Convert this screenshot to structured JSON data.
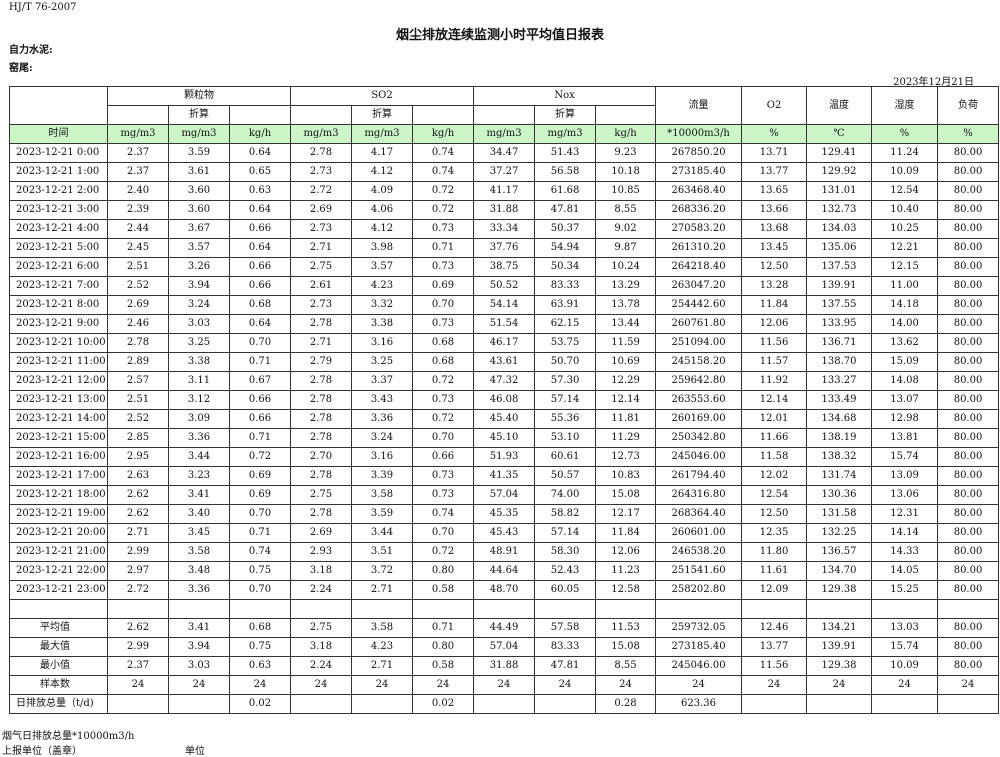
{
  "header": {
    "standard": "HJ/T  76-2007",
    "title": "烟尘排放连续监测小时平均值日报表",
    "company": "自力水泥:",
    "unit": "窑尾:",
    "date": "2023年12月21日"
  },
  "table": {
    "groups": [
      "颗粒物",
      "SO2",
      "Nox"
    ],
    "single_headers": [
      "流量",
      "O2",
      "温度",
      "湿度",
      "负荷"
    ],
    "converted_labels": [
      "折算",
      "折算",
      "折算"
    ],
    "units": [
      "时间",
      "mg/m3",
      "mg/m3",
      "kg/h",
      "mg/m3",
      "mg/m3",
      "kg/h",
      "mg/m3",
      "mg/m3",
      "kg/h",
      "*10000m3/h",
      "%",
      "℃",
      "%",
      "%"
    ],
    "rows": [
      [
        "2023-12-21 0:00",
        "2.37",
        "3.59",
        "0.64",
        "2.78",
        "4.17",
        "0.74",
        "34.47",
        "51.43",
        "9.23",
        "267850.20",
        "13.71",
        "129.41",
        "11.24",
        "80.00"
      ],
      [
        "2023-12-21 1:00",
        "2.37",
        "3.61",
        "0.65",
        "2.73",
        "4.12",
        "0.74",
        "37.27",
        "56.58",
        "10.18",
        "273185.40",
        "13.77",
        "129.92",
        "10.09",
        "80.00"
      ],
      [
        "2023-12-21 2:00",
        "2.40",
        "3.60",
        "0.63",
        "2.72",
        "4.09",
        "0.72",
        "41.17",
        "61.68",
        "10.85",
        "263468.40",
        "13.65",
        "131.01",
        "12.54",
        "80.00"
      ],
      [
        "2023-12-21 3:00",
        "2.39",
        "3.60",
        "0.64",
        "2.69",
        "4.06",
        "0.72",
        "31.88",
        "47.81",
        "8.55",
        "268336.20",
        "13.66",
        "132.73",
        "10.40",
        "80.00"
      ],
      [
        "2023-12-21 4:00",
        "2.44",
        "3.67",
        "0.66",
        "2.73",
        "4.12",
        "0.73",
        "33.34",
        "50.37",
        "9.02",
        "270583.20",
        "13.68",
        "134.03",
        "10.25",
        "80.00"
      ],
      [
        "2023-12-21 5:00",
        "2.45",
        "3.57",
        "0.64",
        "2.71",
        "3.98",
        "0.71",
        "37.76",
        "54.94",
        "9.87",
        "261310.20",
        "13.45",
        "135.06",
        "12.21",
        "80.00"
      ],
      [
        "2023-12-21 6:00",
        "2.51",
        "3.26",
        "0.66",
        "2.75",
        "3.57",
        "0.73",
        "38.75",
        "50.34",
        "10.24",
        "264218.40",
        "12.50",
        "137.53",
        "12.15",
        "80.00"
      ],
      [
        "2023-12-21 7:00",
        "2.52",
        "3.94",
        "0.66",
        "2.61",
        "4.23",
        "0.69",
        "50.52",
        "83.33",
        "13.29",
        "263047.20",
        "13.28",
        "139.91",
        "11.00",
        "80.00"
      ],
      [
        "2023-12-21 8:00",
        "2.69",
        "3.24",
        "0.68",
        "2.73",
        "3.32",
        "0.70",
        "54.14",
        "63.91",
        "13.78",
        "254442.60",
        "11.84",
        "137.55",
        "14.18",
        "80.00"
      ],
      [
        "2023-12-21 9:00",
        "2.46",
        "3.03",
        "0.64",
        "2.78",
        "3.38",
        "0.73",
        "51.54",
        "62.15",
        "13.44",
        "260761.80",
        "12.06",
        "133.95",
        "14.00",
        "80.00"
      ],
      [
        "2023-12-21 10:00",
        "2.78",
        "3.25",
        "0.70",
        "2.71",
        "3.16",
        "0.68",
        "46.17",
        "53.75",
        "11.59",
        "251094.00",
        "11.56",
        "136.71",
        "13.62",
        "80.00"
      ],
      [
        "2023-12-21 11:00",
        "2.89",
        "3.38",
        "0.71",
        "2.79",
        "3.25",
        "0.68",
        "43.61",
        "50.70",
        "10.69",
        "245158.20",
        "11.57",
        "138.70",
        "15.09",
        "80.00"
      ],
      [
        "2023-12-21 12:00",
        "2.57",
        "3.11",
        "0.67",
        "2.78",
        "3.37",
        "0.72",
        "47.32",
        "57.30",
        "12.29",
        "259642.80",
        "11.92",
        "133.27",
        "14.08",
        "80.00"
      ],
      [
        "2023-12-21 13:00",
        "2.51",
        "3.12",
        "0.66",
        "2.78",
        "3.43",
        "0.73",
        "46.08",
        "57.14",
        "12.14",
        "263553.60",
        "12.14",
        "133.49",
        "13.07",
        "80.00"
      ],
      [
        "2023-12-21 14:00",
        "2.52",
        "3.09",
        "0.66",
        "2.78",
        "3.36",
        "0.72",
        "45.40",
        "55.36",
        "11.81",
        "260169.00",
        "12.01",
        "134.68",
        "12.98",
        "80.00"
      ],
      [
        "2023-12-21 15:00",
        "2.85",
        "3.36",
        "0.71",
        "2.78",
        "3.24",
        "0.70",
        "45.10",
        "53.10",
        "11.29",
        "250342.80",
        "11.66",
        "138.19",
        "13.81",
        "80.00"
      ],
      [
        "2023-12-21 16:00",
        "2.95",
        "3.44",
        "0.72",
        "2.70",
        "3.16",
        "0.66",
        "51.93",
        "60.61",
        "12.73",
        "245046.00",
        "11.58",
        "138.32",
        "15.74",
        "80.00"
      ],
      [
        "2023-12-21 17:00",
        "2.63",
        "3.23",
        "0.69",
        "2.78",
        "3.39",
        "0.73",
        "41.35",
        "50.57",
        "10.83",
        "261794.40",
        "12.02",
        "131.74",
        "13.09",
        "80.00"
      ],
      [
        "2023-12-21 18:00",
        "2.62",
        "3.41",
        "0.69",
        "2.75",
        "3.58",
        "0.73",
        "57.04",
        "74.00",
        "15.08",
        "264316.80",
        "12.54",
        "130.36",
        "13.06",
        "80.00"
      ],
      [
        "2023-12-21 19:00",
        "2.62",
        "3.40",
        "0.70",
        "2.78",
        "3.59",
        "0.74",
        "45.35",
        "58.82",
        "12.17",
        "268364.40",
        "12.50",
        "131.58",
        "12.31",
        "80.00"
      ],
      [
        "2023-12-21 20:00",
        "2.71",
        "3.45",
        "0.71",
        "2.69",
        "3.44",
        "0.70",
        "45.43",
        "57.14",
        "11.84",
        "260601.00",
        "12.35",
        "132.25",
        "14.14",
        "80.00"
      ],
      [
        "2023-12-21 21:00",
        "2.99",
        "3.58",
        "0.74",
        "2.93",
        "3.51",
        "0.72",
        "48.91",
        "58.30",
        "12.06",
        "246538.20",
        "11.80",
        "136.57",
        "14.33",
        "80.00"
      ],
      [
        "2023-12-21 22:00",
        "2.97",
        "3.48",
        "0.75",
        "3.18",
        "3.72",
        "0.80",
        "44.64",
        "52.43",
        "11.23",
        "251541.60",
        "11.61",
        "134.70",
        "14.05",
        "80.00"
      ],
      [
        "2023-12-21 23:00",
        "2.72",
        "3.36",
        "0.70",
        "2.24",
        "2.71",
        "0.58",
        "48.70",
        "60.05",
        "12.58",
        "258202.80",
        "12.09",
        "129.38",
        "15.25",
        "80.00"
      ]
    ],
    "summary": [
      [
        "平均值",
        "2.62",
        "3.41",
        "0.68",
        "2.75",
        "3.58",
        "0.71",
        "44.49",
        "57.58",
        "11.53",
        "259732.05",
        "12.46",
        "134.21",
        "13.03",
        "80.00"
      ],
      [
        "最大值",
        "2.99",
        "3.94",
        "0.75",
        "3.18",
        "4.23",
        "0.80",
        "57.04",
        "83.33",
        "15.08",
        "273185.40",
        "13.77",
        "139.91",
        "15.74",
        "80.00"
      ],
      [
        "最小值",
        "2.37",
        "3.03",
        "0.63",
        "2.24",
        "2.71",
        "0.58",
        "31.88",
        "47.81",
        "8.55",
        "245046.00",
        "11.56",
        "129.38",
        "10.09",
        "80.00"
      ],
      [
        "样本数",
        "24",
        "24",
        "24",
        "24",
        "24",
        "24",
        "24",
        "24",
        "24",
        "24",
        "24",
        "24",
        "24",
        "24"
      ],
      [
        "日排放总量（t/d)",
        null,
        null,
        "0.02",
        null,
        null,
        "0.02",
        null,
        null,
        "0.28",
        "623.36",
        null,
        null,
        null,
        null
      ]
    ]
  },
  "footer": {
    "flow_note": "烟气日排放总量*10000m3/h",
    "reporter": "上报单位（盖章）",
    "unit_label": "单位"
  }
}
